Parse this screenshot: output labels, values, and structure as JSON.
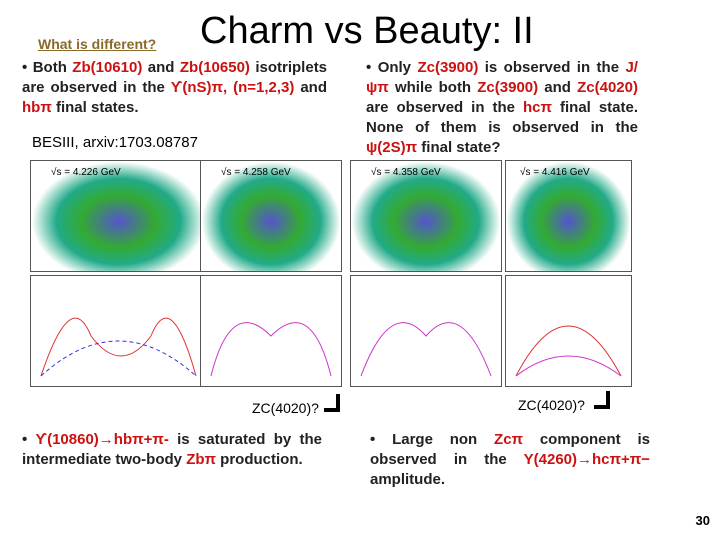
{
  "header": {
    "subtitle": "What is different?",
    "title": "Charm vs Beauty: II"
  },
  "left_bullet_top": {
    "marker": "•",
    "text1": "Both",
    "zb1": "Zb(10610)",
    "text2": "and",
    "zb2": "Zb(10650)",
    "text3": "isotriplets are observed in the",
    "ups": "ϒ(nS)π,",
    "nlist": "(n=1,2,3)",
    "text4": "and",
    "hb": "hbπ",
    "text5": "final states."
  },
  "right_bullet_top": {
    "marker": "•",
    "text1": "Only",
    "zc1": "Zc(3900)",
    "text2": "is observed in the",
    "jpsi": "J/ψπ",
    "text3": "while both",
    "zc2": "Zc(3900)",
    "text4": "and",
    "zc3": "Zc(4020)",
    "text5": "are observed in the",
    "hc": "hcπ",
    "text6": "final state. None of them is observed in the",
    "psi2s": "ψ(2S)π",
    "text7": "final state?"
  },
  "reference": "BESIII, arxiv:1703.08787",
  "plot_labels": {
    "energies": [
      "√s = 4.226 GeV",
      "√s = 4.258 GeV",
      "√s = 4.358 GeV",
      "√s = 4.416 GeV"
    ]
  },
  "annotations": {
    "zc_left": "ZC(4020)?",
    "zc_right": "ZC(4020)?"
  },
  "left_bullet_bottom": {
    "marker": "•",
    "ups": "ϒ(10860)→hbπ+π-",
    "text1": "is saturated by the intermediate two-body",
    "zb": "Zbπ",
    "text2": "production."
  },
  "right_bullet_bottom": {
    "marker": "•",
    "text1": "Large non",
    "zc": "Zcπ",
    "text2": "component is observed in the",
    "y": "Y(4260)→hcπ+π−",
    "text3": "amplitude."
  },
  "page_number": "30"
}
